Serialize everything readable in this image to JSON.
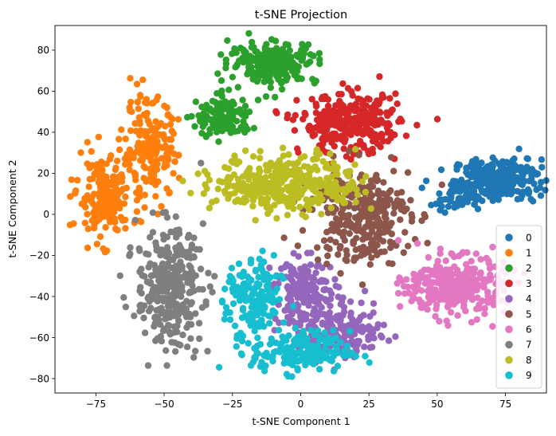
{
  "chart_data": {
    "type": "scatter",
    "title": "t-SNE Projection",
    "xlabel": "t-SNE Component 1",
    "ylabel": "t-SNE Component 2",
    "xlim": [
      -90,
      90
    ],
    "ylim": [
      -87,
      92
    ],
    "xticks": [
      -75,
      -50,
      -25,
      0,
      25,
      50,
      75
    ],
    "xtick_labels": [
      "−75",
      "−50",
      "−25",
      "0",
      "25",
      "50",
      "75"
    ],
    "yticks": [
      -80,
      -60,
      -40,
      -20,
      0,
      20,
      40,
      60,
      80
    ],
    "ytick_labels": [
      "−80",
      "−60",
      "−40",
      "−20",
      "0",
      "20",
      "40",
      "60",
      "80"
    ],
    "grid": false,
    "legend_position": "lower-right",
    "series": [
      {
        "name": "0",
        "color": "#1f77b4",
        "clusters": [
          {
            "cx": 72,
            "cy": 17,
            "sx": 8,
            "sy": 5,
            "n": 260
          },
          {
            "cx": 58,
            "cy": 8,
            "sx": 5,
            "sy": 3,
            "n": 60
          }
        ]
      },
      {
        "name": "1",
        "color": "#ff7f0e",
        "clusters": [
          {
            "cx": -72,
            "cy": 8,
            "sx": 5,
            "sy": 10,
            "n": 200
          },
          {
            "cx": -55,
            "cy": 32,
            "sx": 5,
            "sy": 12,
            "n": 180
          }
        ]
      },
      {
        "name": "2",
        "color": "#2ca02c",
        "clusters": [
          {
            "cx": -10,
            "cy": 74,
            "sx": 8,
            "sy": 5,
            "n": 230
          },
          {
            "cx": -28,
            "cy": 47,
            "sx": 5,
            "sy": 5,
            "n": 150
          }
        ]
      },
      {
        "name": "3",
        "color": "#d62728",
        "clusters": [
          {
            "cx": 18,
            "cy": 44,
            "sx": 9,
            "sy": 7,
            "n": 320
          }
        ]
      },
      {
        "name": "4",
        "color": "#9467bd",
        "clusters": [
          {
            "cx": 2,
            "cy": -38,
            "sx": 6,
            "sy": 8,
            "n": 160
          },
          {
            "cx": 15,
            "cy": -58,
            "sx": 8,
            "sy": 6,
            "n": 180
          }
        ]
      },
      {
        "name": "5",
        "color": "#8c564b",
        "clusters": [
          {
            "cx": 22,
            "cy": 0,
            "sx": 9,
            "sy": 12,
            "n": 300
          }
        ]
      },
      {
        "name": "6",
        "color": "#e377c2",
        "clusters": [
          {
            "cx": 57,
            "cy": -35,
            "sx": 9,
            "sy": 7,
            "n": 320
          }
        ]
      },
      {
        "name": "7",
        "color": "#7f7f7f",
        "clusters": [
          {
            "cx": -48,
            "cy": -35,
            "sx": 6,
            "sy": 14,
            "n": 340
          }
        ]
      },
      {
        "name": "8",
        "color": "#bcbd22",
        "clusters": [
          {
            "cx": -5,
            "cy": 15,
            "sx": 13,
            "sy": 7,
            "n": 380
          }
        ]
      },
      {
        "name": "9",
        "color": "#17becf",
        "clusters": [
          {
            "cx": -17,
            "cy": -42,
            "sx": 5,
            "sy": 10,
            "n": 170
          },
          {
            "cx": 0,
            "cy": -67,
            "sx": 9,
            "sy": 5,
            "n": 180
          }
        ]
      }
    ]
  }
}
